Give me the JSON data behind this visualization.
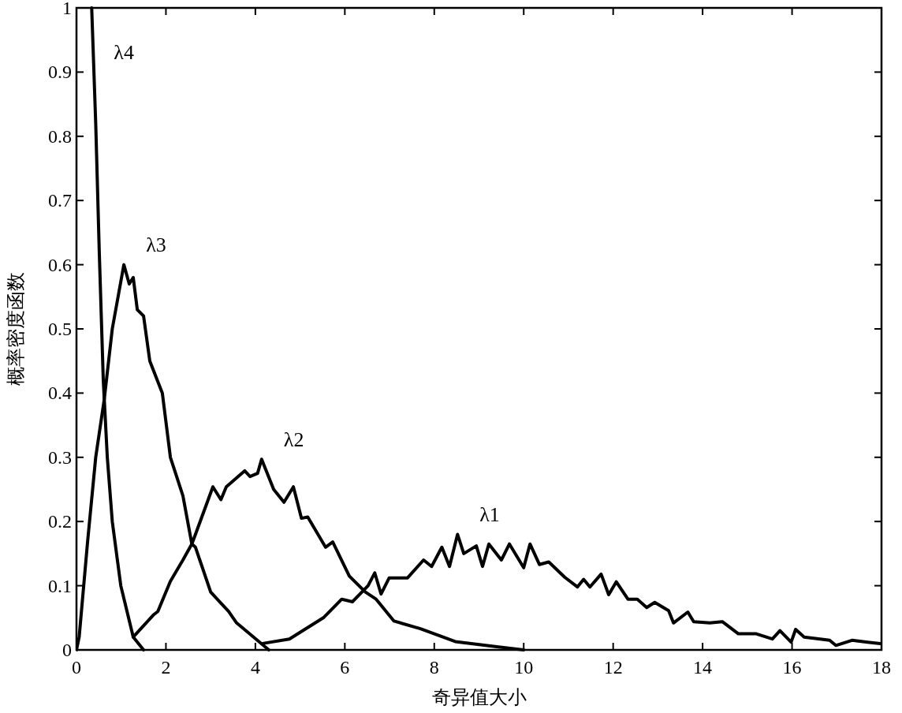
{
  "chart_data": {
    "type": "line",
    "xlabel": "奇异值大小",
    "ylabel": "概率密度函数",
    "xlim": [
      0,
      18
    ],
    "ylim": [
      0,
      1
    ],
    "xticks": [
      0,
      2,
      4,
      6,
      8,
      10,
      12,
      14,
      16,
      18
    ],
    "yticks": [
      0,
      0.1,
      0.2,
      0.3,
      0.4,
      0.5,
      0.6,
      0.7,
      0.8,
      0.9,
      1
    ],
    "series": [
      {
        "name": "λ4",
        "color": "#000000",
        "x": [
          0.34,
          0.43,
          0.51,
          0.6,
          0.69,
          0.8,
          0.99,
          1.27,
          1.5
        ],
        "values": [
          1,
          0.82,
          0.62,
          0.42,
          0.3,
          0.2,
          0.1,
          0.02,
          0
        ]
      },
      {
        "name": "λ3",
        "color": "#000000",
        "x": [
          0,
          0.06,
          0.25,
          0.43,
          0.62,
          0.8,
          1.06,
          1.18,
          1.27,
          1.36,
          1.5,
          1.64,
          1.92,
          2.1,
          2.38,
          2.58,
          2.66,
          3.0,
          3.4,
          3.58,
          3.96,
          4.3
        ],
        "values": [
          0,
          0.02,
          0.17,
          0.3,
          0.39,
          0.5,
          0.6,
          0.57,
          0.58,
          0.53,
          0.52,
          0.45,
          0.4,
          0.3,
          0.24,
          0.165,
          0.16,
          0.09,
          0.06,
          0.042,
          0.02,
          0
        ]
      },
      {
        "name": "λ2",
        "color": "#000000",
        "x": [
          1.27,
          1.73,
          1.82,
          2.1,
          2.38,
          2.58,
          2.66,
          3.05,
          3.23,
          3.35,
          3.76,
          3.88,
          4.05,
          4.14,
          4.41,
          4.64,
          4.85,
          5.03,
          5.17,
          5.57,
          5.73,
          6.1,
          6.46,
          6.7,
          7.1,
          7.69,
          8.47,
          9.4,
          10.0
        ],
        "values": [
          0.02,
          0.055,
          0.06,
          0.107,
          0.14,
          0.165,
          0.18,
          0.254,
          0.234,
          0.254,
          0.279,
          0.27,
          0.275,
          0.297,
          0.25,
          0.23,
          0.254,
          0.205,
          0.207,
          0.16,
          0.168,
          0.115,
          0.09,
          0.079,
          0.045,
          0.033,
          0.013,
          0.005,
          0
        ]
      },
      {
        "name": "λ1",
        "color": "#000000",
        "x": [
          4.16,
          4.76,
          5.52,
          5.93,
          6.17,
          6.52,
          6.67,
          6.81,
          6.99,
          7.4,
          7.76,
          7.94,
          8.17,
          8.34,
          8.52,
          8.66,
          8.94,
          9.08,
          9.22,
          9.5,
          9.68,
          10.0,
          10.14,
          10.35,
          10.56,
          10.92,
          11.2,
          11.34,
          11.48,
          11.73,
          11.9,
          12.07,
          12.33,
          12.54,
          12.75,
          12.93,
          13.24,
          13.35,
          13.67,
          13.8,
          14.16,
          14.44,
          14.8,
          15.2,
          15.56,
          15.73,
          15.98,
          16.08,
          16.27,
          16.84,
          16.98,
          17.34,
          17.69,
          17.97
        ],
        "values": [
          0.01,
          0.017,
          0.05,
          0.079,
          0.075,
          0.1,
          0.12,
          0.087,
          0.112,
          0.112,
          0.14,
          0.13,
          0.16,
          0.13,
          0.18,
          0.15,
          0.162,
          0.13,
          0.165,
          0.14,
          0.165,
          0.128,
          0.165,
          0.133,
          0.137,
          0.113,
          0.098,
          0.11,
          0.098,
          0.118,
          0.086,
          0.106,
          0.079,
          0.079,
          0.066,
          0.074,
          0.061,
          0.042,
          0.059,
          0.044,
          0.042,
          0.044,
          0.025,
          0.025,
          0.017,
          0.03,
          0.012,
          0.032,
          0.02,
          0.015,
          0.007,
          0.015,
          0.012,
          0.01
        ]
      }
    ]
  }
}
